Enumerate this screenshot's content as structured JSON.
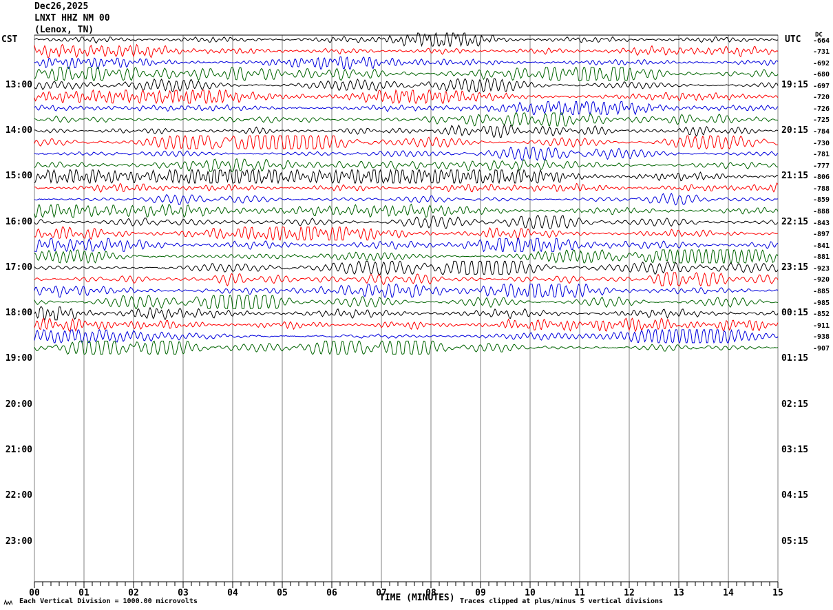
{
  "title": {
    "date": "Dec26,2025",
    "station": "LNXT HHZ NM 00",
    "location": "(Lenox, TN)"
  },
  "axes": {
    "left_header": "CST",
    "right_header": "UTC",
    "dc_header": "DC",
    "x_title": "TIME (MINUTES)",
    "x_ticks": [
      "00",
      "01",
      "02",
      "03",
      "04",
      "05",
      "06",
      "07",
      "08",
      "09",
      "10",
      "11",
      "12",
      "13",
      "14",
      "15"
    ]
  },
  "left_hour_labels": [
    "13:00",
    "14:00",
    "15:00",
    "16:00",
    "17:00",
    "18:00",
    "19:00",
    "20:00",
    "21:00",
    "22:00",
    "23:00"
  ],
  "right_hour_labels": [
    "19:15",
    "20:15",
    "21:15",
    "22:15",
    "23:15",
    "00:15",
    "01:15",
    "02:15",
    "03:15",
    "04:15",
    "05:15"
  ],
  "dc_values": [
    "-664",
    "-731",
    "-692",
    "-680",
    "-697",
    "-720",
    "-726",
    "-725",
    "-784",
    "-730",
    "-781",
    "-777",
    "-806",
    "-788",
    "-859",
    "-888",
    "-843",
    "-897",
    "-841",
    "-881",
    "-923",
    "-920",
    "-885",
    "-985",
    "-852",
    "-911",
    "-938",
    "-907"
  ],
  "footer": {
    "left_note": "Each Vertical Division = 1000.00 microvolts",
    "right_note": "Traces clipped at plus/minus 5 vertical divisions"
  },
  "colors": {
    "trace_cycle": [
      "#000000",
      "#ff0000",
      "#0000dd",
      "#006400"
    ],
    "grid": "#808080",
    "axis": "#000000"
  },
  "chart_data": {
    "type": "line",
    "subtype": "helicorder-seismogram",
    "title": "Dec26,2025 LNXT HHZ NM 00 (Lenox, TN)",
    "xlabel": "TIME (MINUTES)",
    "x_range_minutes": [
      0,
      15
    ],
    "x_major_tick_minutes": 1,
    "x_minor_tick_seconds": 10,
    "minutes_per_trace": 15,
    "traces_per_hour": 4,
    "n_traces": 28,
    "trace_color_cycle": [
      "#000000",
      "#ff0000",
      "#0000dd",
      "#006400"
    ],
    "left_axis": {
      "header": "CST",
      "hour_labels": [
        "13:00",
        "14:00",
        "15:00",
        "16:00",
        "17:00",
        "18:00",
        "19:00",
        "20:00",
        "21:00",
        "22:00",
        "23:00"
      ]
    },
    "right_axis": {
      "header": "UTC",
      "hour_labels": [
        "19:15",
        "20:15",
        "21:15",
        "22:15",
        "23:15",
        "00:15",
        "01:15",
        "02:15",
        "03:15",
        "04:15",
        "05:15"
      ],
      "dc_header": "DC",
      "dc_values": [
        -664,
        -731,
        -692,
        -680,
        -697,
        -720,
        -726,
        -725,
        -784,
        -730,
        -781,
        -777,
        -806,
        -788,
        -859,
        -888,
        -843,
        -897,
        -841,
        -881,
        -923,
        -920,
        -885,
        -985,
        -852,
        -911,
        -938,
        -907
      ]
    },
    "amplitude_note": "Each Vertical Division = 1000.00 microvolts",
    "clipping_note": "Traces clipped at plus/minus 5 vertical divisions",
    "waveform": "continuous ambient microseism noise per 15-minute trace; no discrete readable sample values (rendered procedurally)"
  }
}
